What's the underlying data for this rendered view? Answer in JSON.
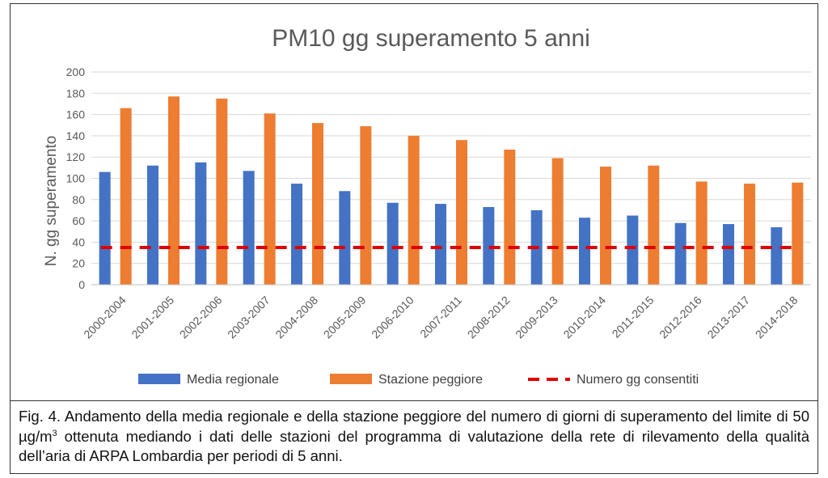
{
  "chart_data": {
    "type": "bar",
    "title": "PM10 gg superamento 5 anni",
    "ylabel": "N. gg superamento",
    "xlabel": "",
    "ylim": [
      0,
      200
    ],
    "yticks": [
      0,
      20,
      40,
      60,
      80,
      100,
      120,
      140,
      160,
      180,
      200
    ],
    "categories": [
      "2000-2004",
      "2001-2005",
      "2002-2006",
      "2003-2007",
      "2004-2008",
      "2005-2009",
      "2006-2010",
      "2007-2011",
      "2008-2012",
      "2009-2013",
      "2010-2014",
      "2011-2015",
      "2012-2016",
      "2013-2017",
      "2014-2018"
    ],
    "series": [
      {
        "name": "Media regionale",
        "color": "#4472c4",
        "values": [
          106,
          112,
          115,
          107,
          95,
          88,
          77,
          76,
          73,
          70,
          63,
          65,
          58,
          57,
          54
        ]
      },
      {
        "name": "Stazione peggiore",
        "color": "#ed7d31",
        "values": [
          166,
          177,
          175,
          161,
          152,
          149,
          140,
          136,
          127,
          119,
          111,
          112,
          97,
          95,
          96
        ]
      },
      {
        "name": "Numero gg consentiti",
        "type": "line",
        "style": "dashed",
        "color": "#e00000",
        "values": [
          35,
          35,
          35,
          35,
          35,
          35,
          35,
          35,
          35,
          35,
          35,
          35,
          35,
          35,
          35
        ]
      }
    ],
    "grid": true,
    "legend": "bottom"
  },
  "caption": {
    "prefix": "Fig. 4. Andamento della media regionale e della stazione peggiore del numero di giorni di superamento del limite di 50 µg/m",
    "sup": "3",
    "suffix": " ottenuta mediando i dati delle stazioni del programma di valutazione della rete di rilevamento della qualità dell’aria di ARPA Lombardia per periodi di 5 anni."
  }
}
